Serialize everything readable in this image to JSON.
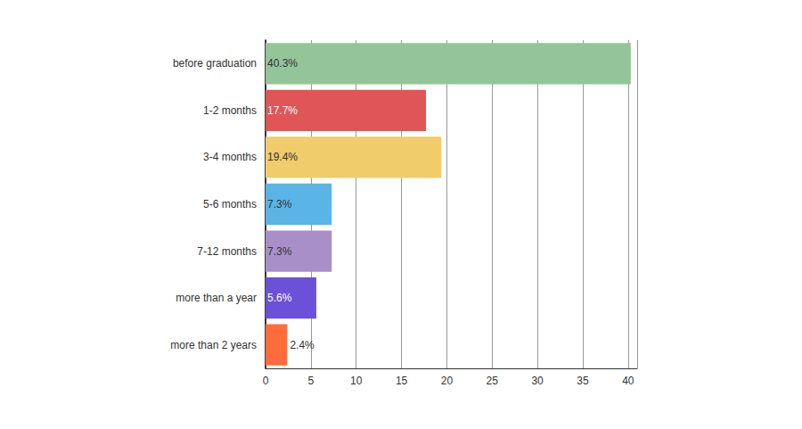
{
  "chart_data": {
    "type": "bar",
    "orientation": "horizontal",
    "categories": [
      "before graduation",
      "1-2 months",
      "3-4 months",
      "5-6 months",
      "7-12 months",
      "more than a year",
      "more than 2 years"
    ],
    "values": [
      40.3,
      17.7,
      19.4,
      7.3,
      7.3,
      5.6,
      2.4
    ],
    "value_labels": [
      "40.3%",
      "17.7%",
      "19.4%",
      "7.3%",
      "7.3%",
      "5.6%",
      "2.4%"
    ],
    "colors": [
      "#93c598",
      "#e05556",
      "#f0cc6b",
      "#5ab4e5",
      "#a98fc8",
      "#6a51d8",
      "#fd6c3a"
    ],
    "xlim": [
      0,
      41
    ],
    "xticks": [
      0,
      5,
      10,
      15,
      20,
      25,
      30,
      35,
      40
    ],
    "grid": true,
    "data_labels": true
  }
}
